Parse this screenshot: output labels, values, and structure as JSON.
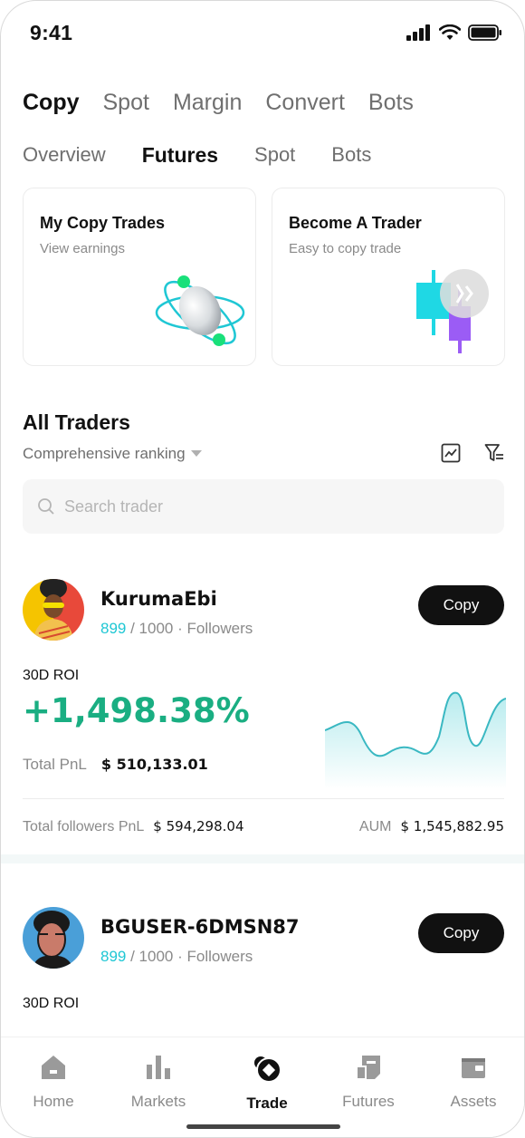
{
  "status_bar": {
    "time": "9:41"
  },
  "main_tabs": [
    {
      "label": "Copy",
      "active": true
    },
    {
      "label": "Spot",
      "active": false
    },
    {
      "label": "Margin",
      "active": false
    },
    {
      "label": "Convert",
      "active": false
    },
    {
      "label": "Bots",
      "active": false
    }
  ],
  "sub_tabs": [
    {
      "label": "Overview",
      "active": false
    },
    {
      "label": "Futures",
      "active": true
    },
    {
      "label": "Spot",
      "active": false
    },
    {
      "label": "Bots",
      "active": false
    }
  ],
  "cards": {
    "my_copy": {
      "title": "My Copy Trades",
      "subtitle": "View earnings",
      "icon": "atom-coin-icon"
    },
    "become": {
      "title": "Become A Trader",
      "subtitle": "Easy to copy trade",
      "icon": "candlestick-icon"
    }
  },
  "traders_section": {
    "title": "All Traders",
    "ranking_label": "Comprehensive ranking",
    "search_placeholder": "Search trader"
  },
  "traders": [
    {
      "name": "KurumaEbi",
      "followers_current": "899",
      "followers_max": "/ 1000",
      "followers_label": "·  Followers",
      "copy_label": "Copy",
      "roi_label": "30D ROI",
      "roi_value": "+1,498.38%",
      "pnl_label": "Total PnL",
      "pnl_value": "$ 510,133.01",
      "followers_pnl_label": "Total followers PnL",
      "followers_pnl_value": "$ 594,298.04",
      "aum_label": "AUM",
      "aum_value": "$ 1,545,882.95"
    },
    {
      "name": "BGUSER-6DMSN87",
      "followers_current": "899",
      "followers_max": "/ 1000",
      "followers_label": "·  Followers",
      "copy_label": "Copy",
      "roi_label": "30D ROI"
    }
  ],
  "bottom_nav": [
    {
      "label": "Home",
      "icon": "home-icon",
      "active": false
    },
    {
      "label": "Markets",
      "icon": "bar-chart-icon",
      "active": false
    },
    {
      "label": "Trade",
      "icon": "trade-icon",
      "active": true
    },
    {
      "label": "Futures",
      "icon": "futures-icon",
      "active": false
    },
    {
      "label": "Assets",
      "icon": "wallet-icon",
      "active": false
    }
  ],
  "colors": {
    "accent_green": "#1aae82",
    "accent_cyan": "#1fc7d4",
    "button_dark": "#111111"
  }
}
